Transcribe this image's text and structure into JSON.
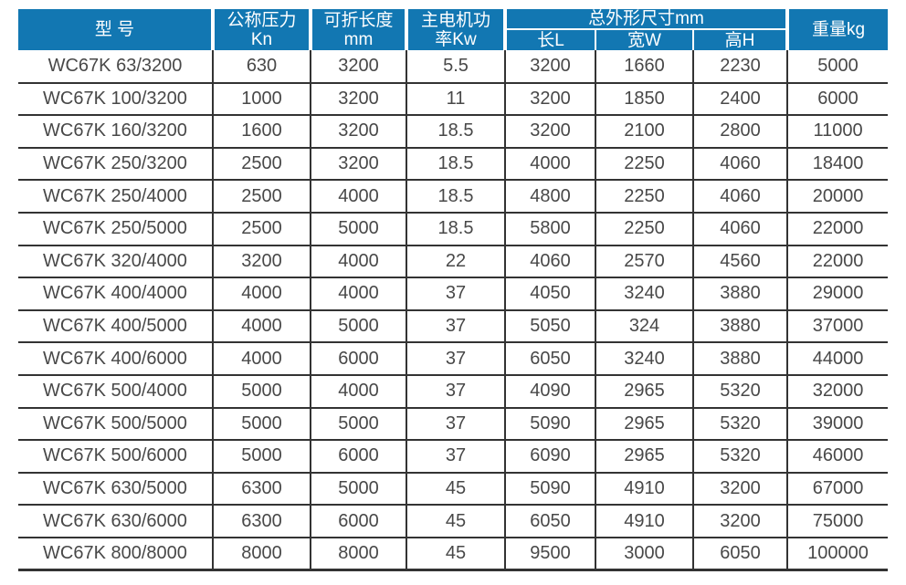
{
  "table": {
    "title_semantic": "WC67K press brake specification table",
    "header": {
      "model": "型 号",
      "pressure": {
        "line1": "公称压力",
        "line2": "Kn"
      },
      "fold_length": {
        "line1": "可折长度",
        "line2": "mm"
      },
      "motor_power": {
        "line1": "主电机功",
        "line2": "率Kw"
      },
      "dims_group": "总外形尺寸mm",
      "dims_length": "长L",
      "dims_width": "宽W",
      "dims_height": "高H",
      "weight": "重量kg"
    },
    "rows": [
      [
        "WC67K 63/3200",
        "630",
        "3200",
        "5.5",
        "3200",
        "1660",
        "2230",
        "5000"
      ],
      [
        "WC67K 100/3200",
        "1000",
        "3200",
        "11",
        "3200",
        "1850",
        "2400",
        "6000"
      ],
      [
        "WC67K 160/3200",
        "1600",
        "3200",
        "18.5",
        "3200",
        "2100",
        "2800",
        "11000"
      ],
      [
        "WC67K 250/3200",
        "2500",
        "3200",
        "18.5",
        "4000",
        "2250",
        "4060",
        "18400"
      ],
      [
        "WC67K 250/4000",
        "2500",
        "4000",
        "18.5",
        "4800",
        "2250",
        "4060",
        "20000"
      ],
      [
        "WC67K 250/5000",
        "2500",
        "5000",
        "18.5",
        "5800",
        "2250",
        "4060",
        "22000"
      ],
      [
        "WC67K 320/4000",
        "3200",
        "4000",
        "22",
        "4060",
        "2570",
        "4560",
        "22000"
      ],
      [
        "WC67K 400/4000",
        "4000",
        "4000",
        "37",
        "4050",
        "3240",
        "3880",
        "29000"
      ],
      [
        "WC67K 400/5000",
        "4000",
        "5000",
        "37",
        "5050",
        "324",
        "3880",
        "37000"
      ],
      [
        "WC67K 400/6000",
        "4000",
        "6000",
        "37",
        "6050",
        "3240",
        "3880",
        "44000"
      ],
      [
        "WC67K 500/4000",
        "5000",
        "4000",
        "37",
        "4090",
        "2965",
        "5320",
        "32000"
      ],
      [
        "WC67K 500/5000",
        "5000",
        "5000",
        "37",
        "5090",
        "2965",
        "5320",
        "39000"
      ],
      [
        "WC67K 500/6000",
        "5000",
        "6000",
        "37",
        "6090",
        "2965",
        "5320",
        "46000"
      ],
      [
        "WC67K 630/5000",
        "6300",
        "5000",
        "45",
        "5090",
        "4910",
        "3200",
        "67000"
      ],
      [
        "WC67K 630/6000",
        "6300",
        "6000",
        "45",
        "6050",
        "4910",
        "3200",
        "75000"
      ],
      [
        "WC67K 800/8000",
        "8000",
        "8000",
        "45",
        "9500",
        "3000",
        "6050",
        "100000"
      ]
    ]
  },
  "colors": {
    "header_bg": "#1277b2",
    "grid_line": "#333333",
    "body_text": "#484848",
    "header_text": "#ffffff"
  }
}
